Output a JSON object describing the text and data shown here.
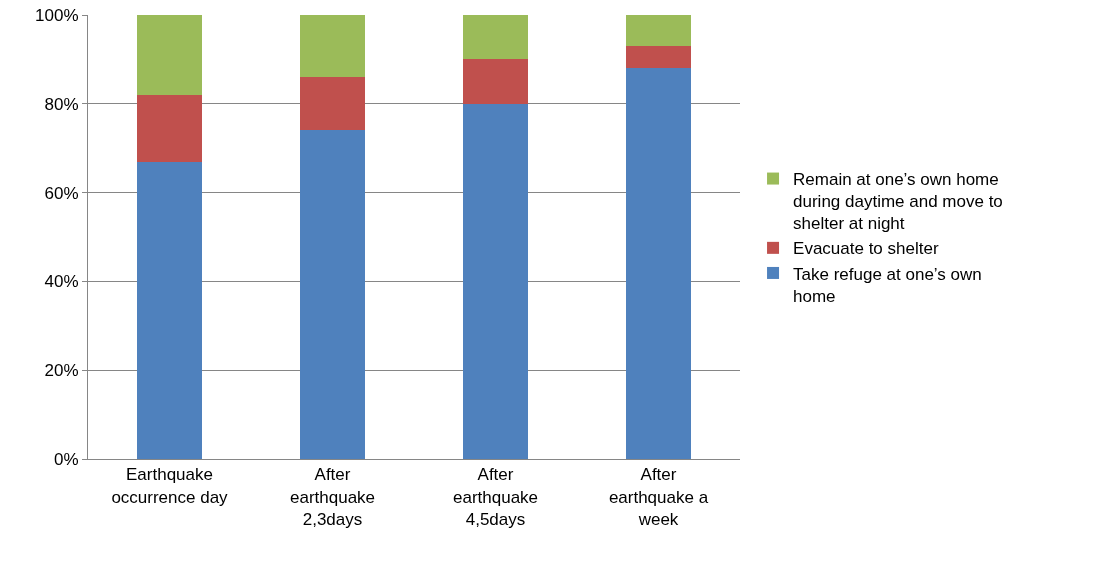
{
  "chart_data": {
    "type": "bar",
    "stacked": true,
    "categories": [
      "Earthquake occurrence day",
      "After earthquake 2,3days",
      "After earthquake 4,5days",
      "After earthquake a week"
    ],
    "series": [
      {
        "name": "Take refuge at one’s own home",
        "color": "#4f81bd",
        "values": [
          67,
          74,
          80,
          88
        ]
      },
      {
        "name": "Evacuate to shelter",
        "color": "#c0504d",
        "values": [
          15,
          12,
          10,
          5
        ]
      },
      {
        "name": "Remain at one’s own home during daytime and move to shelter at night",
        "color": "#9bbb59",
        "values": [
          18,
          14,
          10,
          7
        ]
      }
    ],
    "ylim": [
      0,
      100
    ],
    "yticks": [
      {
        "value": 0,
        "label": "0%"
      },
      {
        "value": 20,
        "label": "20%"
      },
      {
        "value": 40,
        "label": "40%"
      },
      {
        "value": 60,
        "label": "60%"
      },
      {
        "value": 80,
        "label": "80%"
      },
      {
        "value": 100,
        "label": "100%"
      }
    ],
    "grid": "y",
    "legend": "right"
  }
}
